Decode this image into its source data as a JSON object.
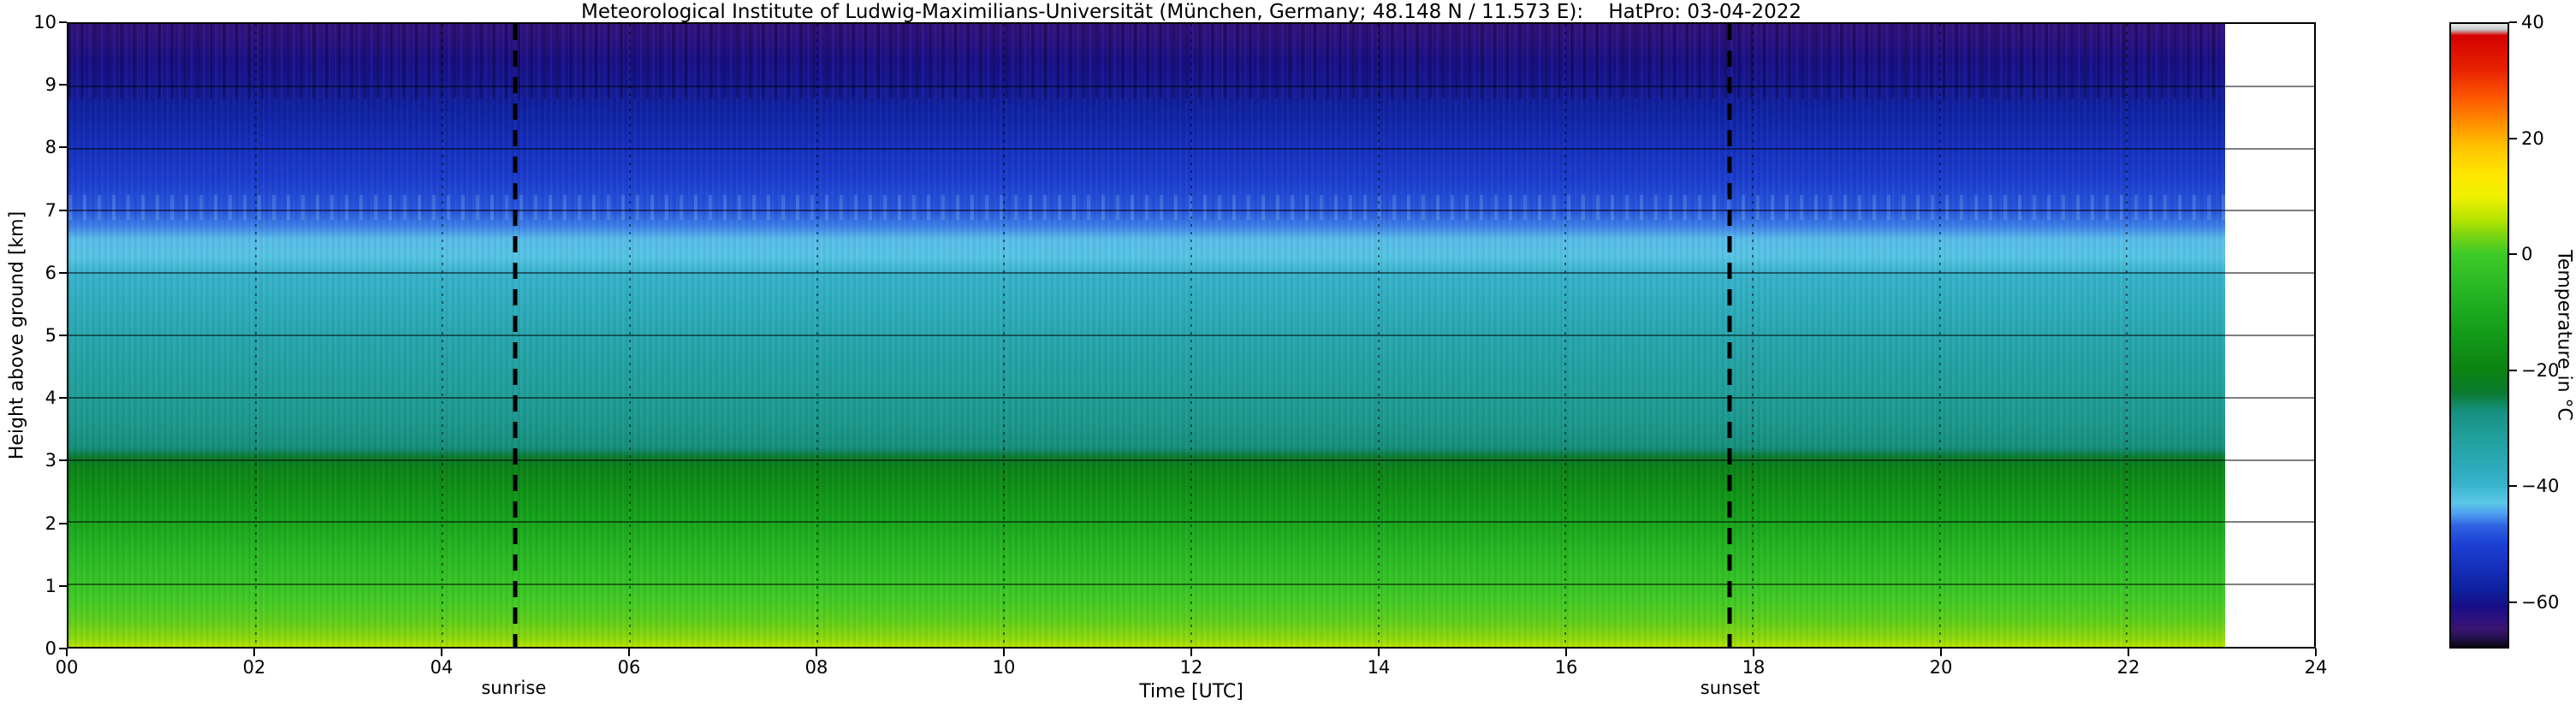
{
  "chart_data": {
    "type": "heatmap",
    "title": "Meteorological Institute of Ludwig-Maximilians-Universität (München, Germany; 48.148 N / 11.573 E):    HatPro: 03-04-2022",
    "xlabel": "Time [UTC]",
    "ylabel": "Height above ground [km]",
    "colorbar_label": "Temperature in  °C",
    "grid": true,
    "x_range_hours": [
      0,
      24
    ],
    "y_range_km": [
      0,
      10
    ],
    "data_end_hour": 23.05,
    "x_ticks": [
      {
        "hour": 0,
        "label": "00"
      },
      {
        "hour": 2,
        "label": "02"
      },
      {
        "hour": 4,
        "label": "04"
      },
      {
        "hour": 6,
        "label": "06"
      },
      {
        "hour": 8,
        "label": "08"
      },
      {
        "hour": 10,
        "label": "10"
      },
      {
        "hour": 12,
        "label": "12"
      },
      {
        "hour": 14,
        "label": "14"
      },
      {
        "hour": 16,
        "label": "16"
      },
      {
        "hour": 18,
        "label": "18"
      },
      {
        "hour": 20,
        "label": "20"
      },
      {
        "hour": 22,
        "label": "22"
      },
      {
        "hour": 24,
        "label": "24"
      }
    ],
    "y_ticks": [
      {
        "km": 0,
        "label": "0"
      },
      {
        "km": 1,
        "label": "1"
      },
      {
        "km": 2,
        "label": "2"
      },
      {
        "km": 3,
        "label": "3"
      },
      {
        "km": 4,
        "label": "4"
      },
      {
        "km": 5,
        "label": "5"
      },
      {
        "km": 6,
        "label": "6"
      },
      {
        "km": 7,
        "label": "7"
      },
      {
        "km": 8,
        "label": "8"
      },
      {
        "km": 9,
        "label": "9"
      },
      {
        "km": 10,
        "label": "10"
      }
    ],
    "annotations": [
      {
        "name": "sunrise",
        "label": "sunrise",
        "hour": 4.77
      },
      {
        "name": "sunset",
        "label": "sunset",
        "hour": 17.75
      }
    ],
    "colorbar": {
      "vmax": 40,
      "vmin": -68,
      "ticks": [
        {
          "v": 40,
          "label": "40"
        },
        {
          "v": 20,
          "label": "20"
        },
        {
          "v": 0,
          "label": "0"
        },
        {
          "v": -20,
          "label": "−20"
        },
        {
          "v": -40,
          "label": "−40"
        },
        {
          "v": -60,
          "label": "−60"
        }
      ]
    },
    "colormap": [
      {
        "v": 40,
        "c": "#ebebeb"
      },
      {
        "v": 39,
        "c": "#c6c6c6"
      },
      {
        "v": 38,
        "c": "#d40000"
      },
      {
        "v": 32,
        "c": "#e82300"
      },
      {
        "v": 27,
        "c": "#ff5a00"
      },
      {
        "v": 23,
        "c": "#ff8c00"
      },
      {
        "v": 19,
        "c": "#ffc000"
      },
      {
        "v": 14,
        "c": "#ffe600"
      },
      {
        "v": 10,
        "c": "#eef000"
      },
      {
        "v": 6,
        "c": "#b5e300"
      },
      {
        "v": 3,
        "c": "#74d214"
      },
      {
        "v": 0,
        "c": "#3cca28"
      },
      {
        "v": -5,
        "c": "#2bba24"
      },
      {
        "v": -10,
        "c": "#1aa91e"
      },
      {
        "v": -15,
        "c": "#119617"
      },
      {
        "v": -20,
        "c": "#0c8312"
      },
      {
        "v": -24,
        "c": "#0a7a2f"
      },
      {
        "v": -27,
        "c": "#168f7d"
      },
      {
        "v": -31,
        "c": "#1f9e97"
      },
      {
        "v": -36,
        "c": "#2aa9b5"
      },
      {
        "v": -40,
        "c": "#38b3cd"
      },
      {
        "v": -43,
        "c": "#5cc8e8"
      },
      {
        "v": -45,
        "c": "#4e9df0"
      },
      {
        "v": -47,
        "c": "#2e63e2"
      },
      {
        "v": -50,
        "c": "#1d41d4"
      },
      {
        "v": -54,
        "c": "#1530be"
      },
      {
        "v": -58,
        "c": "#0e209e"
      },
      {
        "v": -61,
        "c": "#170f87"
      },
      {
        "v": -63,
        "c": "#2c1180"
      },
      {
        "v": -65,
        "c": "#3a1470"
      },
      {
        "v": -66.5,
        "c": "#22104a"
      },
      {
        "v": -68,
        "c": "#0a0714"
      }
    ],
    "profile": [
      {
        "h": 0,
        "t": 6
      },
      {
        "h": 0.15,
        "t": 4
      },
      {
        "h": 0.4,
        "t": 2
      },
      {
        "h": 0.7,
        "t": 0.5
      },
      {
        "h": 1,
        "t": -1.5
      },
      {
        "h": 1.5,
        "t": -6
      },
      {
        "h": 2,
        "t": -11
      },
      {
        "h": 2.5,
        "t": -16
      },
      {
        "h": 2.9,
        "t": -21
      },
      {
        "h": 3.05,
        "t": -24
      },
      {
        "h": 3.2,
        "t": -27
      },
      {
        "h": 3.6,
        "t": -29.5
      },
      {
        "h": 4,
        "t": -31
      },
      {
        "h": 4.5,
        "t": -33
      },
      {
        "h": 5,
        "t": -35
      },
      {
        "h": 5.5,
        "t": -37.5
      },
      {
        "h": 6,
        "t": -40
      },
      {
        "h": 6.25,
        "t": -42.5
      },
      {
        "h": 6.55,
        "t": -43.5
      },
      {
        "h": 6.75,
        "t": -46
      },
      {
        "h": 7,
        "t": -48
      },
      {
        "h": 7.5,
        "t": -51
      },
      {
        "h": 8,
        "t": -54
      },
      {
        "h": 8.5,
        "t": -57
      },
      {
        "h": 9,
        "t": -59.5
      },
      {
        "h": 9.4,
        "t": -61
      },
      {
        "h": 9.7,
        "t": -62.5
      },
      {
        "h": 10,
        "t": -63.5
      }
    ]
  }
}
